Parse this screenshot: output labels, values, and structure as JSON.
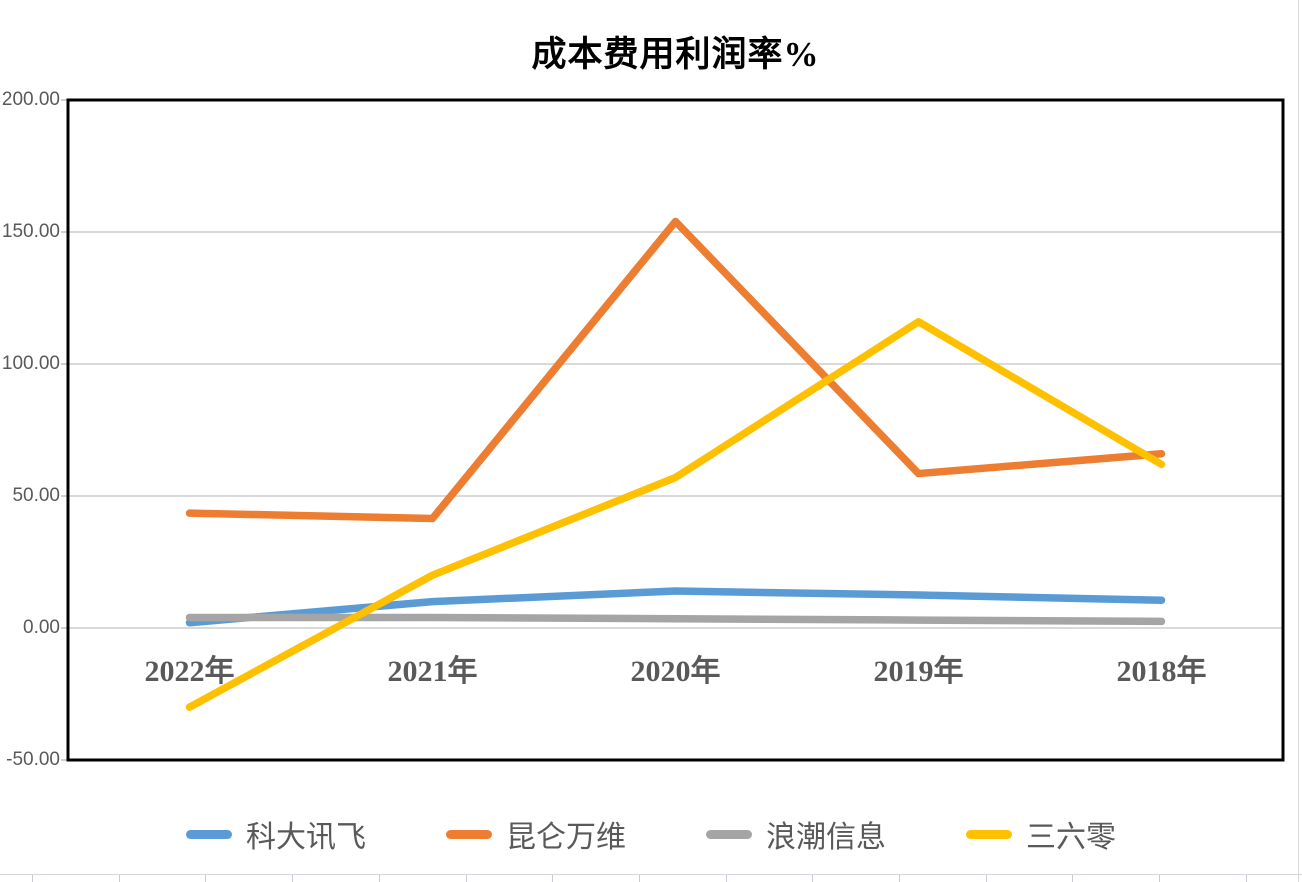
{
  "chart_data": {
    "type": "line",
    "title": "成本费用利润率%",
    "categories": [
      "2022年",
      "2021年",
      "2020年",
      "2019年",
      "2018年"
    ],
    "series": [
      {
        "name": "科大讯飞",
        "color": "#5B9BD5",
        "values": [
          2,
          10,
          14,
          12.5,
          10.5
        ]
      },
      {
        "name": "昆仑万维",
        "color": "#ED7D31",
        "values": [
          43.5,
          41.5,
          154,
          58.5,
          66
        ]
      },
      {
        "name": "浪潮信息",
        "color": "#A5A5A5",
        "values": [
          4,
          4,
          3.5,
          3,
          2.5
        ]
      },
      {
        "name": "三六零",
        "color": "#FFC000",
        "values": [
          -30,
          20,
          57,
          116,
          62
        ]
      }
    ],
    "ylim": [
      -50,
      200
    ],
    "y_tick_step": 50,
    "y_tick_labels": [
      "200.00",
      "150.00",
      "100.00",
      "50.00",
      "0.00",
      "-50.00"
    ],
    "xlabel": "",
    "ylabel": "",
    "grid": "horizontal",
    "legend_position": "bottom"
  },
  "styles": {
    "title_color": "#000000",
    "axis_text_color": "#595959",
    "grid_color": "#D9D9D9",
    "plot_border_color": "#000000",
    "spreadsheet_line_color": "#D7D5DD"
  }
}
